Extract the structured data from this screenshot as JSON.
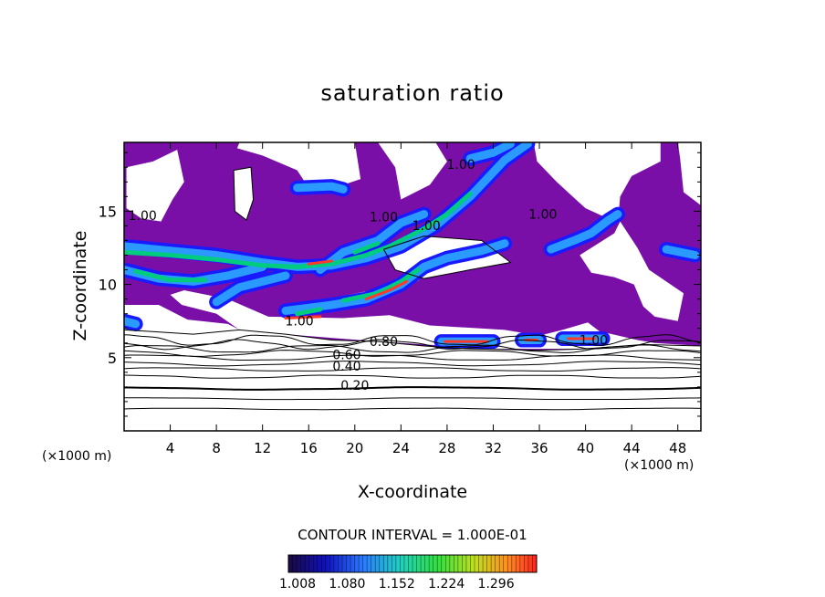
{
  "chart_data": {
    "type": "heatmap",
    "title": "saturation ratio",
    "xlabel": "X-coordinate",
    "ylabel": "Z-coordinate",
    "x_unit": "(×1000 m)",
    "x_ticks": [
      4,
      8,
      12,
      16,
      20,
      24,
      28,
      32,
      36,
      40,
      44,
      48
    ],
    "y_ticks": [
      5,
      10,
      15
    ],
    "xlim": [
      0,
      50
    ],
    "ylim": [
      0,
      19.7
    ],
    "contour_interval_label": "CONTOUR INTERVAL = 1.000E-01",
    "contour_labels": [
      {
        "text": "0.20",
        "x": 20.0,
        "y": 2.8
      },
      {
        "text": "0.40",
        "x": 19.3,
        "y": 4.1
      },
      {
        "text": "0.60",
        "x": 19.3,
        "y": 4.9
      },
      {
        "text": "0.80",
        "x": 22.5,
        "y": 5.8
      },
      {
        "text": "1.00",
        "x": 15.2,
        "y": 7.2
      },
      {
        "text": "1.00",
        "x": 1.6,
        "y": 14.4
      },
      {
        "text": "1.00",
        "x": 22.5,
        "y": 14.3
      },
      {
        "text": "1.00",
        "x": 26.2,
        "y": 13.7
      },
      {
        "text": "1.00",
        "x": 29.2,
        "y": 17.9
      },
      {
        "text": "1.00",
        "x": 36.3,
        "y": 14.5
      },
      {
        "text": "1.00",
        "x": 40.7,
        "y": 5.9
      }
    ],
    "colorbar": {
      "ticks": [
        "1.008",
        "1.080",
        "1.152",
        "1.224",
        "1.296"
      ],
      "range": [
        1.0,
        1.3
      ]
    },
    "colors": {
      "supersat_base": "#7a0fa8",
      "band_low": "#1a1aff",
      "band_mid": "#00cc80",
      "band_high": "#ff3a2a"
    }
  }
}
